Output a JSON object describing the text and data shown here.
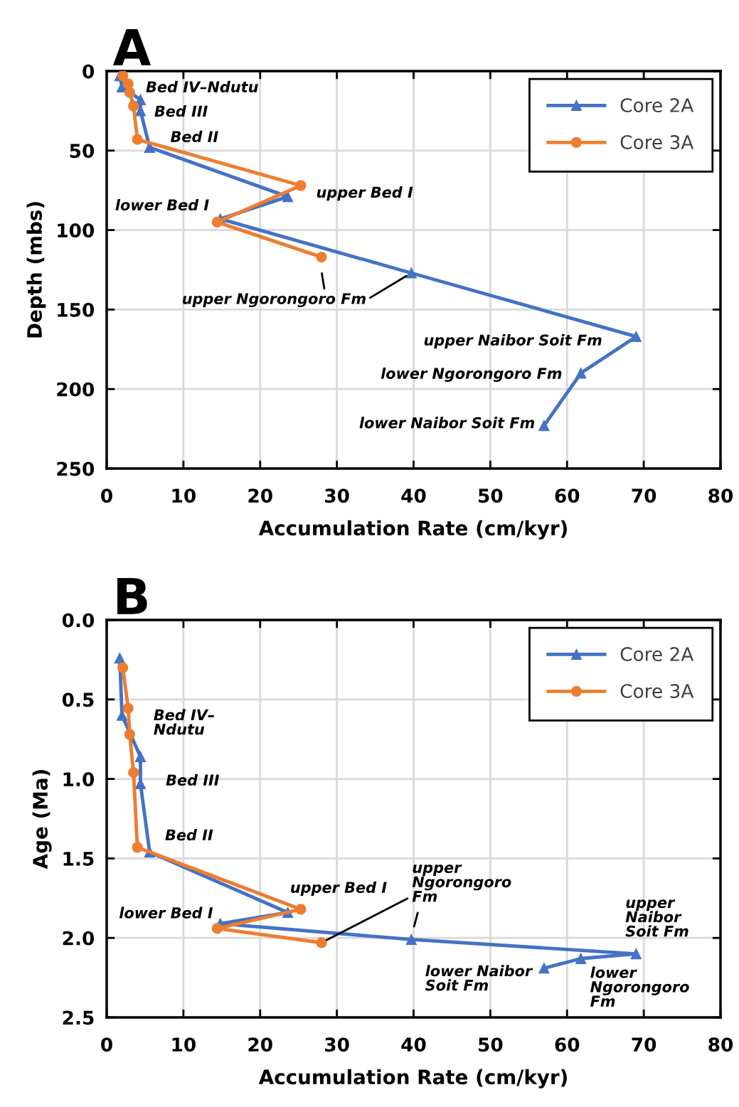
{
  "chart_data": [
    {
      "type": "line",
      "title": "A",
      "xlabel": "Accumulation Rate (cm/kyr)",
      "ylabel": "Depth (mbs)",
      "xlim": [
        0,
        80
      ],
      "xticks": [
        0,
        10,
        20,
        30,
        40,
        50,
        60,
        70,
        80
      ],
      "ylim": [
        250,
        0
      ],
      "yticks": [
        0,
        50,
        100,
        150,
        200,
        250
      ],
      "grid": true,
      "legend": "top right",
      "line_style": "solid",
      "series": [
        {
          "name": "Core 2A",
          "color": "#4472c4",
          "marker": "triangle",
          "x": [
            1.7,
            2.0,
            4.4,
            4.4,
            5.6,
            23.6,
            14.8,
            39.7,
            69,
            61.8,
            57
          ],
          "values": [
            3,
            10,
            18,
            25,
            48,
            79,
            93,
            127,
            167,
            190,
            223
          ]
        },
        {
          "name": "Core 3A",
          "color": "#ed7d31",
          "marker": "circle",
          "x": [
            2.1,
            2.8,
            3.0,
            3.5,
            4.0,
            25.3,
            14.4,
            28
          ],
          "values": [
            3,
            8,
            13.5,
            22,
            43,
            72,
            95,
            117
          ]
        }
      ],
      "annotations": [
        "Bed IV–Ndutu",
        "Bed III",
        "Bed II",
        "upper Bed I",
        "lower Bed I",
        {
          "text": "upper Ngorongoro Fm",
          "x": 39.7,
          "y": 127
        },
        "upper Naibor Soit Fm",
        "lower Ngorongoro Fm",
        "lower Naibor Soit Fm"
      ]
    },
    {
      "type": "line",
      "title": "B",
      "xlabel": "Accumulation Rate (cm/kyr)",
      "ylabel": "Age (Ma)",
      "xlim": [
        0,
        80
      ],
      "xticks": [
        0,
        10,
        20,
        30,
        40,
        50,
        60,
        70,
        80
      ],
      "ylim": [
        2.5,
        0
      ],
      "yticks": [
        {
          "value": 0,
          "label": "0.0"
        },
        0.5,
        {
          "value": 1,
          "label": "1.0"
        },
        1.5,
        {
          "value": 2,
          "label": "2.0"
        },
        2.5
      ],
      "grid": true,
      "legend": "top right",
      "line_style": "solid",
      "series": [
        {
          "name": "Core 2A",
          "color": "#4472c4",
          "marker": "triangle",
          "x": [
            1.7,
            2.0,
            4.4,
            4.4,
            5.6,
            23.6,
            14.8,
            39.7,
            69,
            61.8,
            57
          ],
          "values": [
            0.24,
            0.6,
            0.86,
            1.03,
            1.46,
            1.84,
            1.91,
            2.01,
            2.1,
            2.13,
            2.19
          ]
        },
        {
          "name": "Core 3A",
          "color": "#ed7d31",
          "marker": "circle",
          "x": [
            2.1,
            2.8,
            3.0,
            3.5,
            4.0,
            25.3,
            14.4,
            28
          ],
          "values": [
            0.3,
            0.555,
            0.72,
            0.96,
            1.43,
            1.82,
            1.94,
            2.03
          ]
        }
      ],
      "annotations": [
        "Bed IV–\nNdutu",
        "Bed III",
        "Bed II",
        "upper Bed I",
        "lower Bed I",
        {
          "text": "upper\nNgorongoro\nFm",
          "x": 28,
          "y": 2.03
        },
        "upper\nNaibor\nSoit Fm",
        "lower Naibor\nSoit Fm",
        "lower\nNgorongoro\nFm"
      ]
    }
  ]
}
